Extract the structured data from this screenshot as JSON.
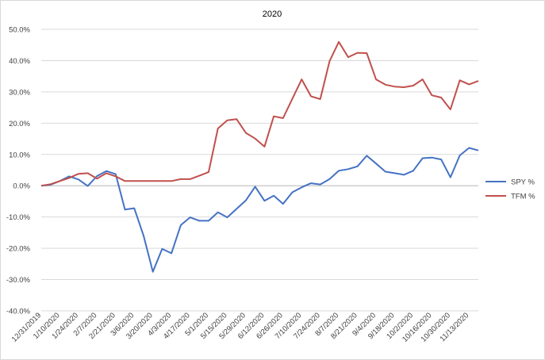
{
  "chart_data": {
    "type": "line",
    "title": "2020",
    "xlabel": "",
    "ylabel": "",
    "ylim": [
      -40,
      50
    ],
    "y_tick_step": 10,
    "y_tick_format": "percent_1dp",
    "grid": "horizontal",
    "legend_position": "right",
    "x_tick_labels": [
      "12/31/2019",
      "1/10/2020",
      "1/24/2020",
      "2/7/2020",
      "2/21/2020",
      "3/6/2020",
      "3/20/2020",
      "4/3/2020",
      "4/17/2020",
      "5/1/2020",
      "5/15/2020",
      "5/29/2020",
      "6/12/2020",
      "6/26/2020",
      "7/10/2020",
      "7/24/2020",
      "8/7/2020",
      "8/21/2020",
      "9/4/2020",
      "9/18/2020",
      "10/2/2020",
      "10/16/2020",
      "10/30/2020",
      "11/13/2020"
    ],
    "x": [
      "12/31/2019",
      "1/3/2020",
      "1/10/2020",
      "1/17/2020",
      "1/24/2020",
      "1/31/2020",
      "2/7/2020",
      "2/14/2020",
      "2/21/2020",
      "2/28/2020",
      "3/6/2020",
      "3/13/2020",
      "3/20/2020",
      "3/27/2020",
      "4/3/2020",
      "4/10/2020",
      "4/17/2020",
      "4/24/2020",
      "5/1/2020",
      "5/8/2020",
      "5/15/2020",
      "5/22/2020",
      "5/29/2020",
      "6/5/2020",
      "6/12/2020",
      "6/19/2020",
      "6/26/2020",
      "7/3/2020",
      "7/10/2020",
      "7/17/2020",
      "7/24/2020",
      "7/31/2020",
      "8/7/2020",
      "8/14/2020",
      "8/21/2020",
      "8/28/2020",
      "9/4/2020",
      "9/11/2020",
      "9/18/2020",
      "9/25/2020",
      "10/2/2020",
      "10/9/2020",
      "10/16/2020",
      "10/23/2020",
      "10/30/2020",
      "11/6/2020",
      "11/13/2020",
      "11/20/2020"
    ],
    "series": [
      {
        "name": "SPY %",
        "color": "#4472C4",
        "values": [
          0.0,
          0.3,
          1.5,
          3.0,
          2.0,
          -0.1,
          3.1,
          4.7,
          3.7,
          -7.6,
          -7.2,
          -16.0,
          -27.5,
          -20.2,
          -21.6,
          -12.6,
          -10.1,
          -11.2,
          -11.2,
          -8.5,
          -10.1,
          -7.4,
          -4.7,
          -0.3,
          -4.8,
          -3.2,
          -5.8,
          -2.1,
          -0.5,
          0.8,
          0.4,
          2.1,
          4.8,
          5.3,
          6.2,
          9.6,
          7.1,
          4.5,
          4.0,
          3.5,
          4.8,
          8.8,
          9.0,
          8.4,
          2.7,
          9.7,
          12.1,
          11.3
        ]
      },
      {
        "name": "TFM %",
        "color": "#C0504D",
        "values": [
          0.0,
          0.5,
          1.5,
          2.5,
          3.8,
          4.0,
          2.3,
          4.0,
          3.0,
          1.5,
          1.5,
          1.5,
          1.5,
          1.5,
          1.5,
          2.1,
          2.1,
          3.2,
          4.4,
          18.3,
          20.9,
          21.3,
          16.9,
          15.1,
          12.5,
          22.2,
          21.6,
          27.8,
          34.0,
          28.6,
          27.7,
          39.8,
          46.0,
          41.1,
          42.5,
          42.4,
          34.0,
          32.3,
          31.7,
          31.5,
          32.0,
          34.0,
          28.9,
          28.2,
          24.4,
          33.7,
          32.4,
          33.5
        ]
      }
    ]
  }
}
